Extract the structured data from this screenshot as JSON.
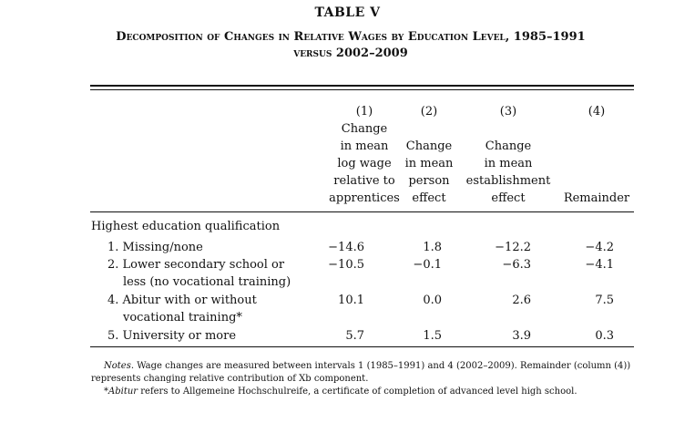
{
  "table": {
    "label": "TABLE V",
    "title_line1": "Decomposition of Changes in Relative Wages by Education Level, 1985–1991",
    "title_line2": "versus 2002–2009"
  },
  "columns": [
    {
      "number": "(1)",
      "lines": [
        "Change",
        "in mean",
        "log wage",
        "relative to",
        "apprentices"
      ]
    },
    {
      "number": "(2)",
      "lines": [
        "Change",
        "in mean",
        "person",
        "effect"
      ]
    },
    {
      "number": "(3)",
      "lines": [
        "Change",
        "in mean",
        "establishment",
        "effect"
      ]
    },
    {
      "number": "(4)",
      "lines": [
        "Remainder"
      ]
    }
  ],
  "section_label": "Highest education qualification",
  "rows": [
    {
      "label": "1. Missing/none",
      "label_cont": "",
      "values": [
        "−14.6",
        "1.8",
        "−12.2",
        "−4.2"
      ]
    },
    {
      "label": "2. Lower secondary school or",
      "label_cont": "less (no vocational training)",
      "values": [
        "−10.5",
        "−0.1",
        "−6.3",
        "−4.1"
      ]
    },
    {
      "label": "4. Abitur with or without",
      "label_cont": "vocational training*",
      "values": [
        "10.1",
        "0.0",
        "2.6",
        "7.5"
      ]
    },
    {
      "label": "5. University or more",
      "label_cont": "",
      "values": [
        "5.7",
        "1.5",
        "3.9",
        "0.3"
      ]
    }
  ],
  "notes": {
    "notes_label": "Notes.",
    "notes_text": " Wage changes are measured between intervals 1 (1985–1991) and 4 (2002–2009). Remainder (column (4)) represents changing relative contribution of Xb component.",
    "footnote_term": "*Abitur",
    "footnote_text": " refers to Allgemeine Hochschulreife, a certificate of completion of advanced level high school."
  }
}
